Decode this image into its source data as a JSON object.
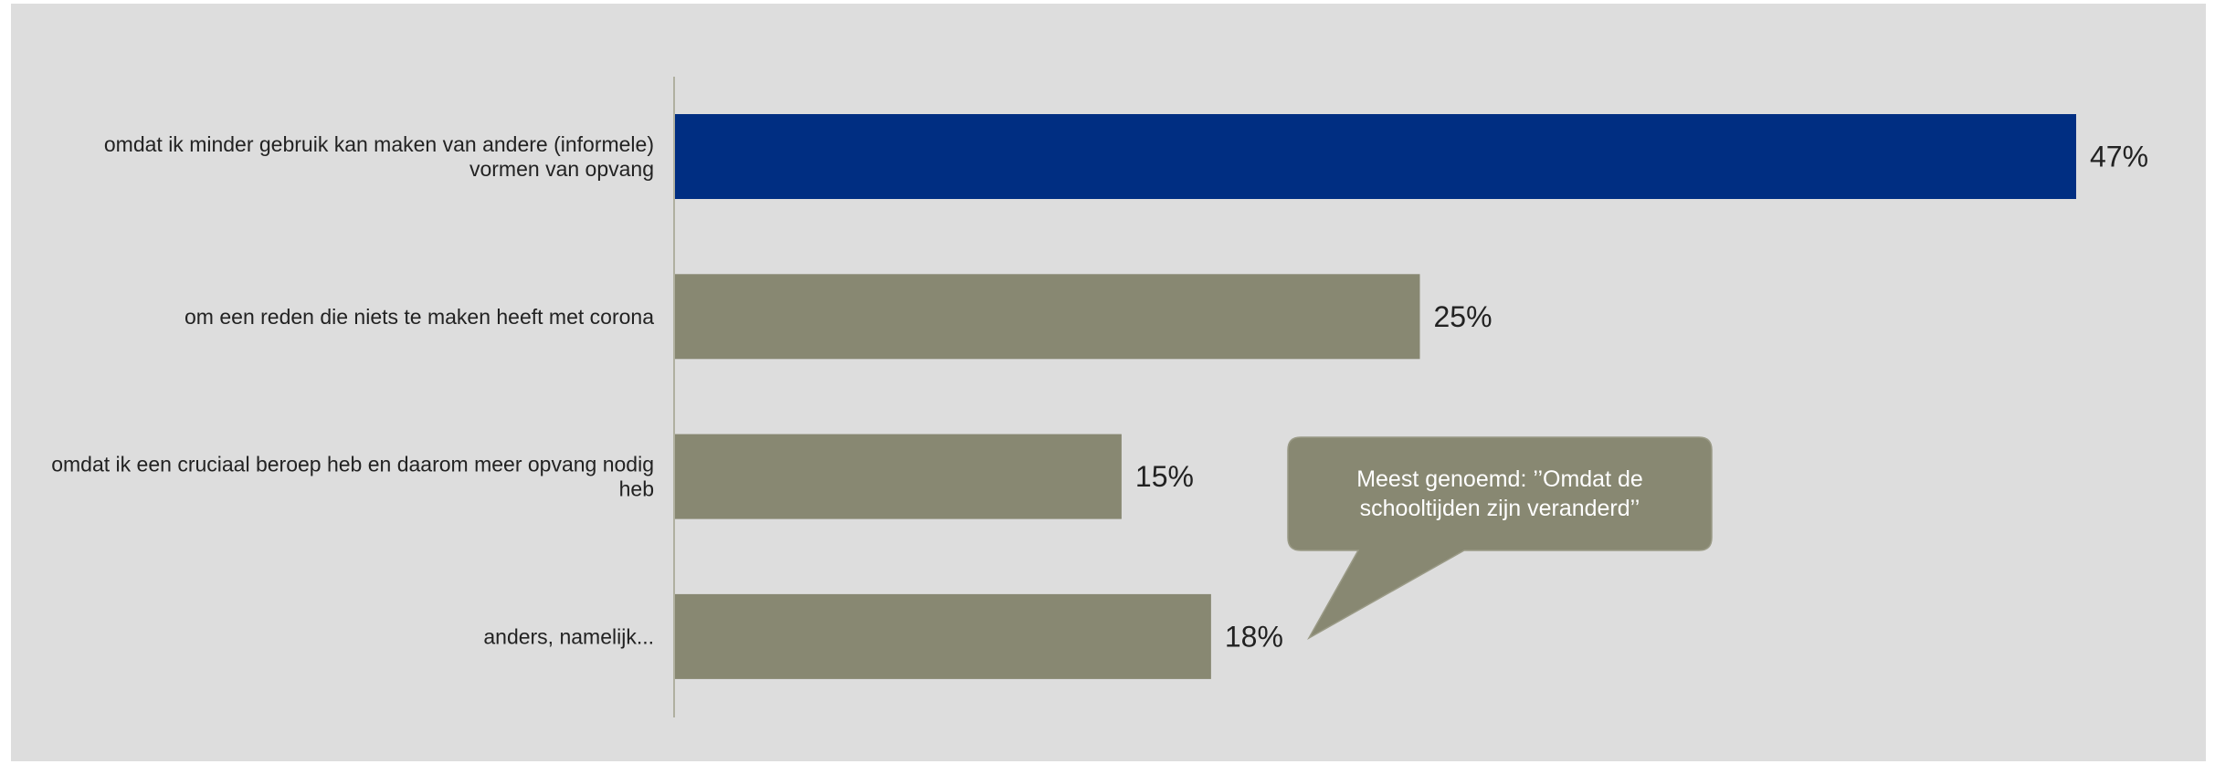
{
  "chart_data": {
    "type": "bar",
    "orientation": "horizontal",
    "categories": [
      [
        "omdat ik minder gebruik kan maken van andere (informele)",
        "vormen van opvang"
      ],
      [
        "om een reden die niets te maken heeft met corona"
      ],
      [
        "omdat ik een cruciaal beroep heb en daarom meer opvang nodig",
        "heb"
      ],
      [
        "anders, namelijk..."
      ]
    ],
    "values": [
      47,
      25,
      15,
      18
    ],
    "value_labels": [
      "47%",
      "25%",
      "15%",
      "18%"
    ],
    "xlim": [
      0,
      47
    ],
    "bar_colors": [
      "#002e82",
      "#888872",
      "#888872",
      "#888872"
    ],
    "axis_color": "#b0b0a0",
    "background": "#dddddd",
    "grid": false,
    "title": "",
    "xlabel": "",
    "ylabel": ""
  },
  "callout": {
    "text": "Meest genoemd: ’’Omdat de schooltijden zijn veranderd’’",
    "color": "#888872",
    "points_to": "anders, namelijk..."
  }
}
